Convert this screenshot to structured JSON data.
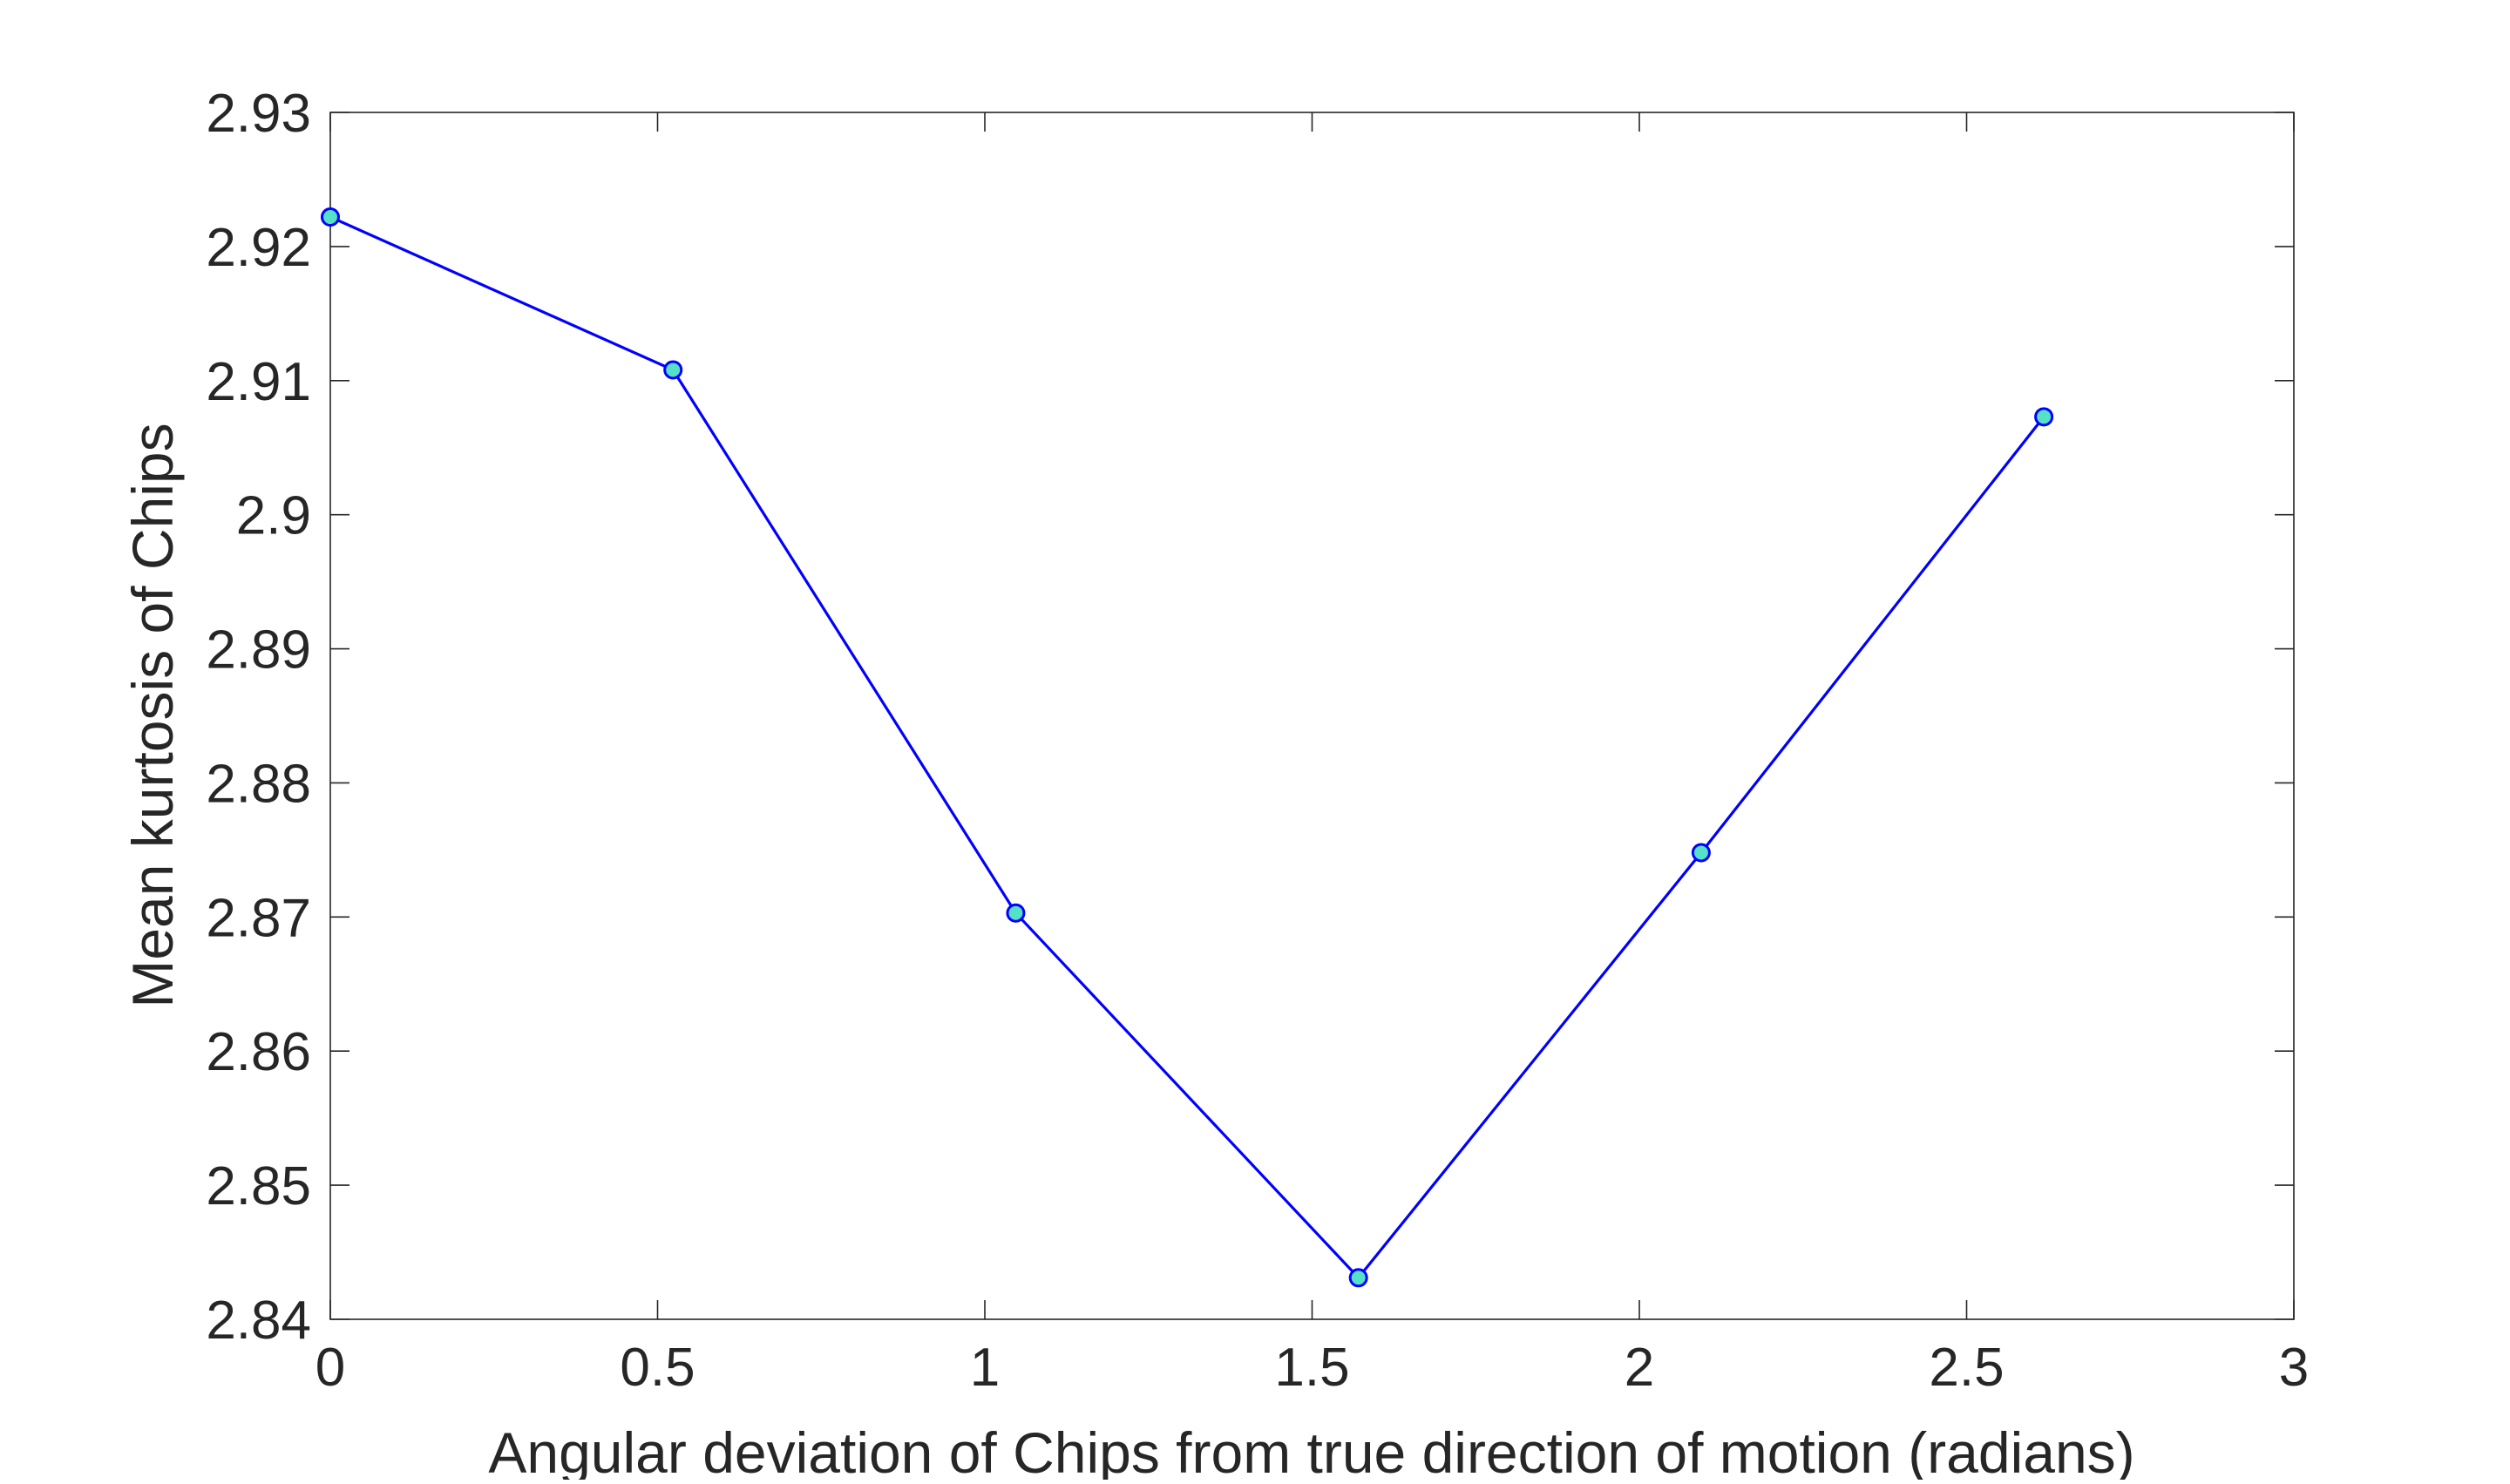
{
  "chart_data": {
    "type": "line",
    "title": "",
    "xlabel": "Angular deviation of Chips from true direction of motion (radians)",
    "ylabel": "Mean kurtosis of Chips",
    "xlim": [
      0,
      3
    ],
    "ylim": [
      2.84,
      2.93
    ],
    "xticks": [
      0,
      0.5,
      1,
      1.5,
      2,
      2.5,
      3
    ],
    "xtick_labels": [
      "0",
      "0.5",
      "1",
      "1.5",
      "2",
      "2.5",
      "3"
    ],
    "yticks": [
      2.84,
      2.85,
      2.86,
      2.87,
      2.88,
      2.89,
      2.9,
      2.91,
      2.92,
      2.93
    ],
    "ytick_labels": [
      "2.84",
      "2.85",
      "2.86",
      "2.87",
      "2.88",
      "2.89",
      "2.9",
      "2.91",
      "2.92",
      "2.93"
    ],
    "grid": false,
    "legend": "none",
    "series": [
      {
        "x": [
          0,
          0.5236,
          1.0472,
          1.5708,
          2.0944,
          2.618
        ],
        "y": [
          2.9222,
          2.9108,
          2.8703,
          2.8431,
          2.8748,
          2.9073
        ],
        "line_color": "#0000ff",
        "marker_face_color": "#55e0c8",
        "marker_edge_color": "#0000ff"
      }
    ]
  }
}
